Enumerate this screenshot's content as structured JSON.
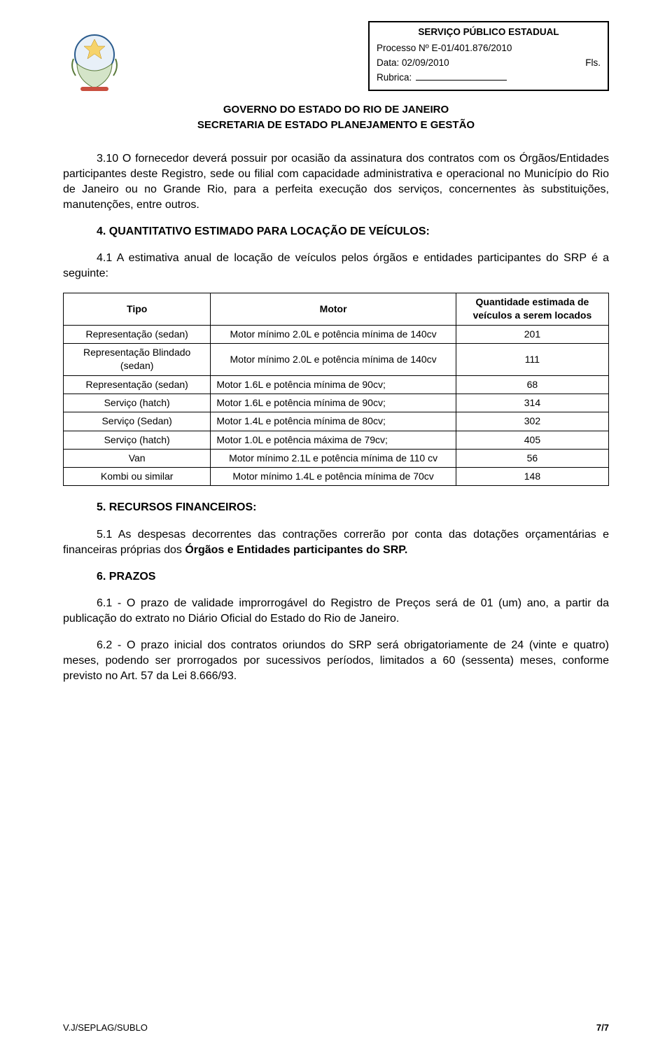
{
  "header": {
    "service_title": "SERVIÇO PÚBLICO ESTADUAL",
    "processo_label": "Processo Nº",
    "processo_num": "E-01/401.876/2010",
    "data_label": "Data:",
    "data_val": "02/09/2010",
    "fls_label": "Fls.",
    "rubrica_label": "Rubrica:",
    "gov_line1": "GOVERNO DO ESTADO DO RIO DE JANEIRO",
    "gov_line2": "SECRETARIA DE ESTADO PLANEJAMENTO E GESTÃO"
  },
  "para_3_10": "3.10 O fornecedor deverá possuir por ocasião da assinatura dos contratos com os Órgãos/Entidades participantes deste Registro, sede ou filial com capacidade administrativa e operacional no Município do Rio de Janeiro ou no Grande Rio, para a perfeita execução dos serviços, concernentes às substituições, manutenções, entre outros.",
  "sec4_title": "4. QUANTITATIVO ESTIMADO PARA LOCAÇÃO DE VEÍCULOS:",
  "para_4_1": "4.1 A estimativa anual de locação de veículos pelos órgãos e entidades participantes do SRP é a seguinte:",
  "table": {
    "col_tipo": "Tipo",
    "col_motor": "Motor",
    "col_qty": "Quantidade estimada de veículos a serem locados",
    "rows": [
      {
        "tipo": "Representação (sedan)",
        "motor": "Motor mínimo 2.0L e potência mínima de 140cv",
        "motor_center": true,
        "qty": "201"
      },
      {
        "tipo": "Representação Blindado (sedan)",
        "motor": "Motor mínimo 2.0L e potência mínima de 140cv",
        "motor_center": true,
        "qty": "111"
      },
      {
        "tipo": "Representação (sedan)",
        "motor": "Motor 1.6L e potência mínima de 90cv;",
        "motor_center": false,
        "qty": "68"
      },
      {
        "tipo": "Serviço (hatch)",
        "motor": "Motor 1.6L e potência mínima de 90cv;",
        "motor_center": false,
        "qty": "314"
      },
      {
        "tipo": "Serviço (Sedan)",
        "motor": "Motor 1.4L e potência mínima de 80cv;",
        "motor_center": false,
        "qty": "302"
      },
      {
        "tipo": "Serviço (hatch)",
        "motor": "Motor 1.0L e potência máxima de 79cv;",
        "motor_center": false,
        "qty": "405"
      },
      {
        "tipo": "Van",
        "motor": "Motor mínimo 2.1L e potência mínima de 110 cv",
        "motor_center": true,
        "qty": "56"
      },
      {
        "tipo": "Kombi ou similar",
        "motor": "Motor mínimo 1.4L e potência mínima de 70cv",
        "motor_center": true,
        "qty": "148"
      }
    ]
  },
  "sec5_title": "5. RECURSOS FINANCEIROS:",
  "para_5_1_pre": "5.1 As despesas decorrentes das contrações correrão por conta das dotações orçamentárias e financeiras próprias dos ",
  "para_5_1_bold": "Órgãos e Entidades participantes do SRP.",
  "sec6_title": "6. PRAZOS",
  "para_6_1": "6.1 - O prazo de validade improrrogável do Registro de Preços será de 01 (um) ano, a partir da publicação do extrato no Diário Oficial do Estado do Rio de Janeiro.",
  "para_6_2": "6.2 - O prazo inicial dos contratos oriundos do SRP será obrigatoriamente de 24 (vinte e quatro) meses, podendo ser prorrogados por sucessivos períodos, limitados a 60 (sessenta) meses, conforme previsto no Art. 57 da Lei 8.666/93.",
  "footer": {
    "left": "V.J/SEPLAG/SUBLO",
    "right": "7/7"
  }
}
